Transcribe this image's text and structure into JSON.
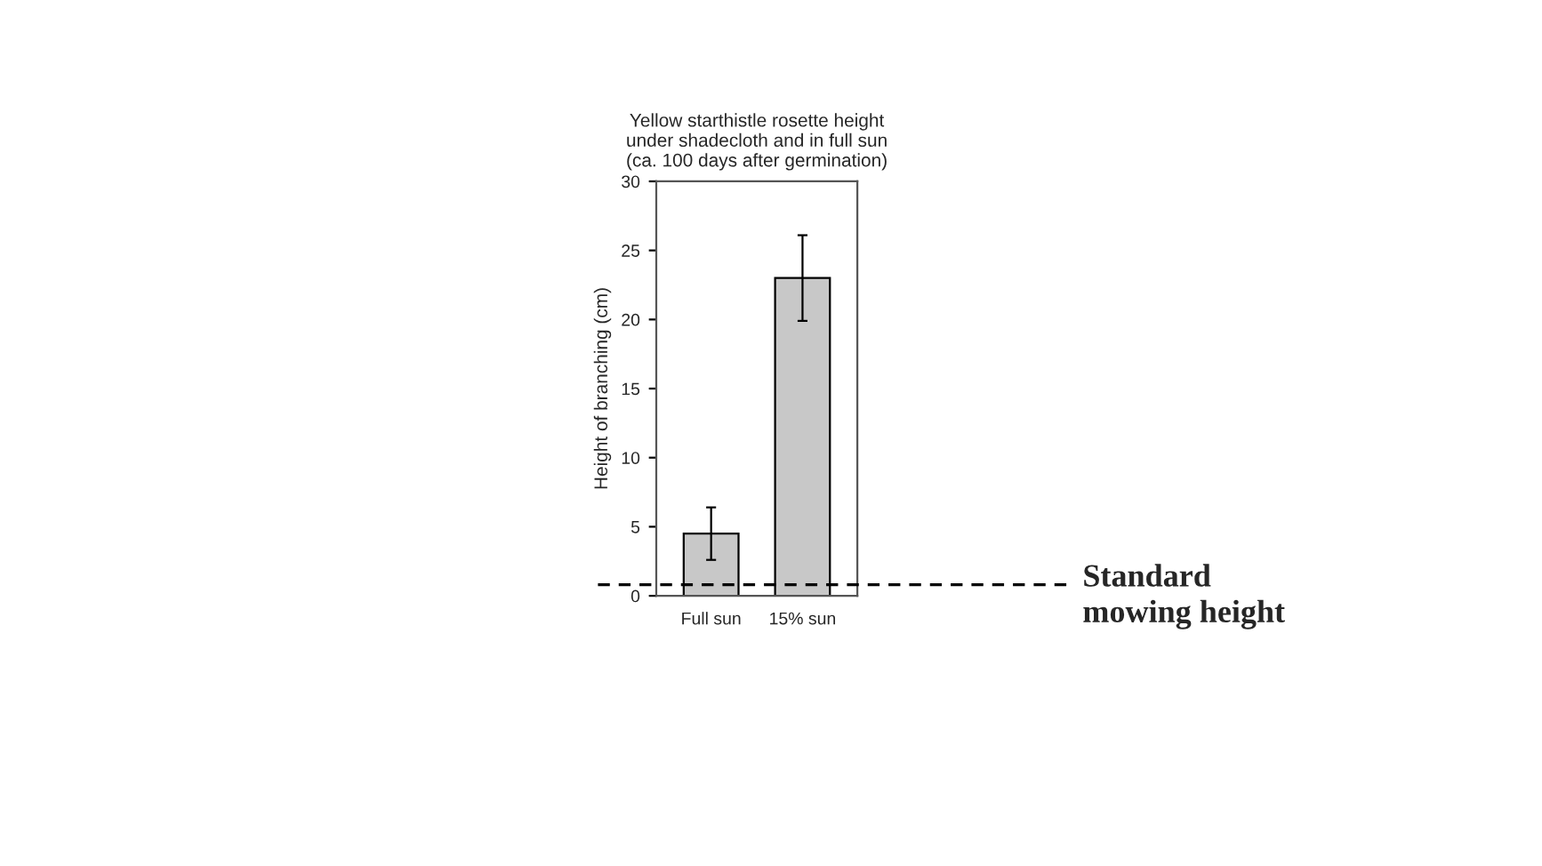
{
  "chart_data": {
    "type": "bar",
    "title": "Yellow starthistle rosette height\nunder shadecloth and in full sun\n(ca. 100 days after germination)",
    "ylabel": "Height of branching (cm)",
    "categories": [
      "Full sun",
      "15% sun"
    ],
    "values": [
      4.5,
      23.0
    ],
    "errors": [
      1.9,
      3.1
    ],
    "color": "#c8c8c8",
    "ylim": [
      0,
      30
    ],
    "yticks": [
      0,
      5,
      10,
      15,
      20,
      25,
      30
    ],
    "grid": false,
    "ref_lines": [
      {
        "axis": "y",
        "value": 0.8,
        "label": "Standard\nmowing height",
        "color": "#000000",
        "line_style": "dashed"
      }
    ]
  }
}
